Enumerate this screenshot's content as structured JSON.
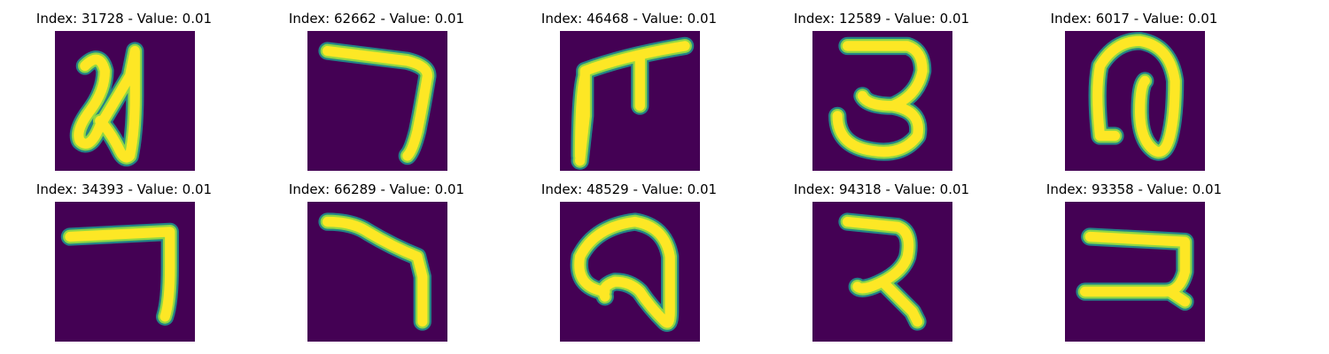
{
  "panels": [
    {
      "title": "Index: 31728 - Value: 0.01",
      "glyph": "bengali-digit-2"
    },
    {
      "title": "Index: 62662 - Value: 0.01",
      "glyph": "bengali-digit-7"
    },
    {
      "title": "Index: 46468 - Value: 0.01",
      "glyph": "bengali-digit-4"
    },
    {
      "title": "Index: 12589 - Value: 0.01",
      "glyph": "bengali-digit-3"
    },
    {
      "title": "Index: 6017 - Value: 0.01",
      "glyph": "bengali-digit-9"
    },
    {
      "title": "Index: 34393 - Value: 0.01",
      "glyph": "bengali-digit-7"
    },
    {
      "title": "Index: 66289 - Value: 0.01",
      "glyph": "bengali-digit-7"
    },
    {
      "title": "Index: 48529 - Value: 0.01",
      "glyph": "bengali-digit-9"
    },
    {
      "title": "Index: 94318 - Value: 0.01",
      "glyph": "bengali-digit-2"
    },
    {
      "title": "Index: 93358 - Value: 0.01",
      "glyph": "bengali-digit-2"
    }
  ],
  "colors": {
    "background": "#440154",
    "stroke_core": "#fde725",
    "stroke_mid": "#8fd744",
    "stroke_edge": "#21918c"
  }
}
